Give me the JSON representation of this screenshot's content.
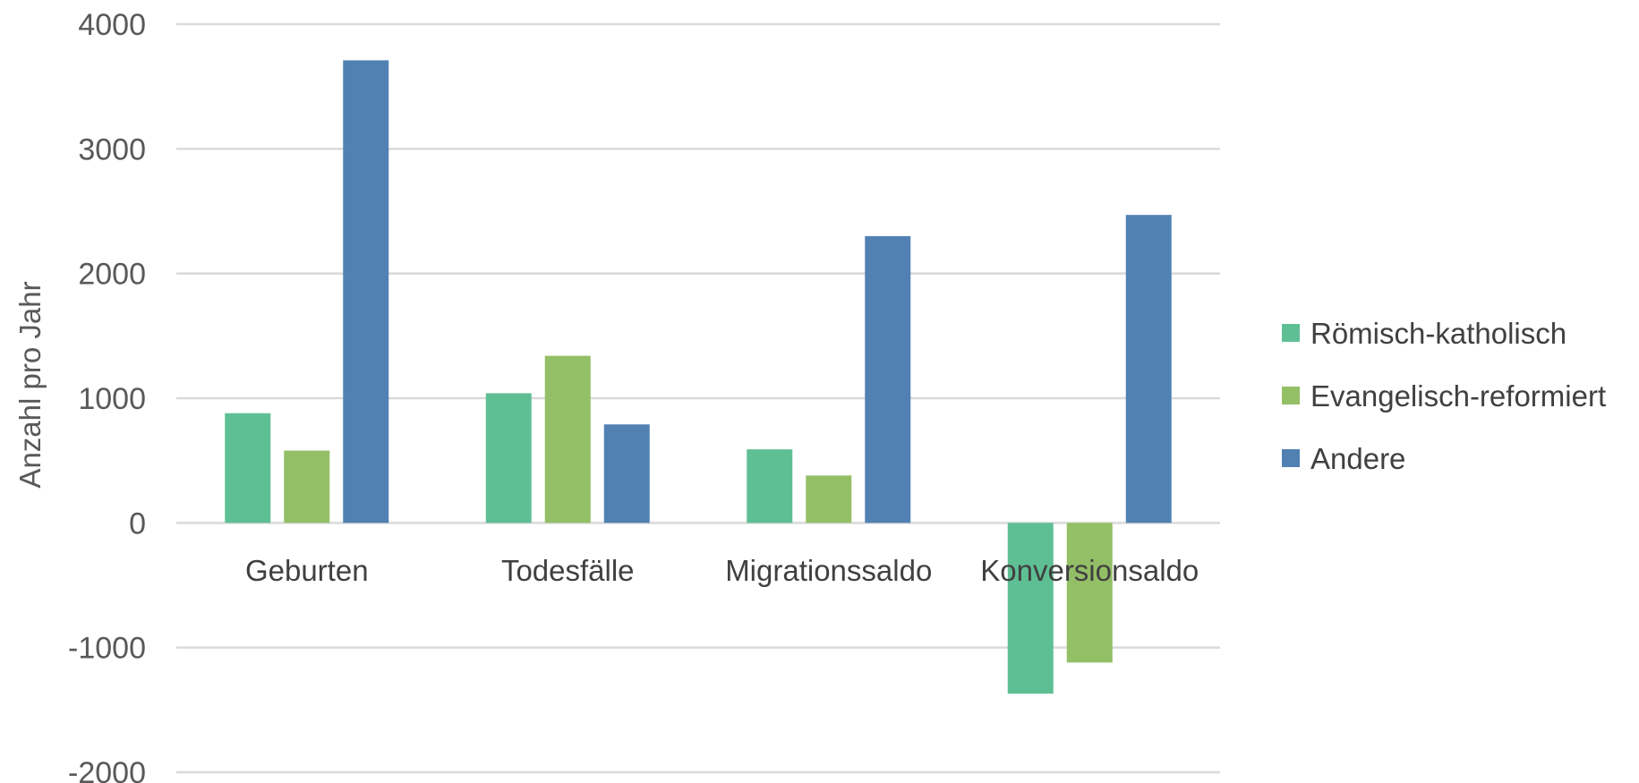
{
  "chart_data": {
    "type": "bar",
    "title": "",
    "xlabel": "",
    "ylabel": "Anzahl pro Jahr",
    "ylim": [
      -2000,
      4000
    ],
    "yticks": [
      4000,
      3000,
      2000,
      1000,
      0,
      -1000,
      -2000
    ],
    "grid": true,
    "legend_position": "right",
    "categories": [
      "Geburten",
      "Todesfälle",
      "Migrationssaldo",
      "Konversionsaldo"
    ],
    "series": [
      {
        "name": "Römisch-katholisch",
        "color": "#5fbf94",
        "values": [
          880,
          1040,
          590,
          -1370
        ]
      },
      {
        "name": "Evangelisch-reformiert",
        "color": "#93bf66",
        "values": [
          580,
          1340,
          380,
          -1120
        ]
      },
      {
        "name": "Andere",
        "color": "#5181b3",
        "values": [
          3710,
          790,
          2300,
          2470
        ]
      }
    ]
  }
}
